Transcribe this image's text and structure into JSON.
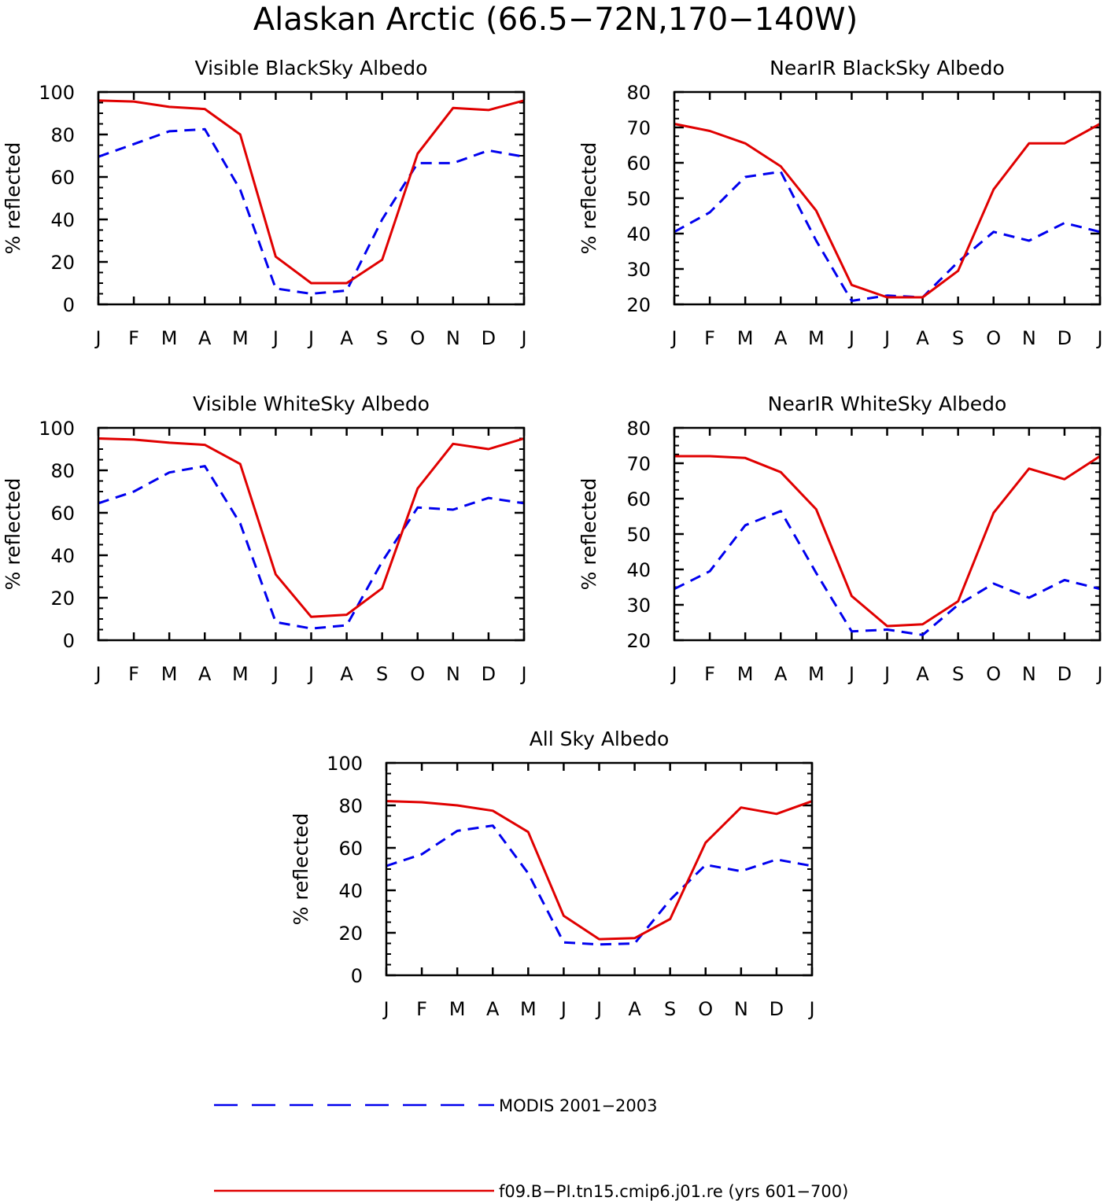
{
  "figure": {
    "title": "Alaskan Arctic (66.5−72N,170−140W)",
    "legend": [
      {
        "name": "MODIS 2001−2003",
        "color": "#0000ee",
        "style": "dashed"
      },
      {
        "name": "f09.B−PI.tn15.cmip6.j01.re (yrs 601−700)",
        "color": "#e00000",
        "style": "solid"
      }
    ]
  },
  "chart_data": [
    {
      "type": "line",
      "title": "Visible BlackSky Albedo",
      "xlabel": "",
      "ylabel": "% reflected",
      "categories": [
        "J",
        "F",
        "M",
        "A",
        "M",
        "J",
        "J",
        "A",
        "S",
        "O",
        "N",
        "D",
        "J"
      ],
      "ylim": [
        0,
        100
      ],
      "yticks": [
        0,
        20,
        40,
        60,
        80,
        100
      ],
      "series": [
        {
          "name": "MODIS 2001−2003",
          "color": "#0000ee",
          "style": "dashed",
          "values": [
            69.5,
            75.5,
            81.5,
            82.5,
            54,
            7.5,
            5,
            6.5,
            40,
            66.5,
            66.5,
            72.5,
            69.5
          ]
        },
        {
          "name": "f09.B−PI.tn15.cmip6.j01.re (yrs 601−700)",
          "color": "#e00000",
          "style": "solid",
          "values": [
            96,
            95.5,
            93,
            92,
            80,
            22.5,
            10,
            10,
            21,
            71,
            92.5,
            91.5,
            96
          ]
        }
      ]
    },
    {
      "type": "line",
      "title": "NearIR BlackSky Albedo",
      "xlabel": "",
      "ylabel": "% reflected",
      "categories": [
        "J",
        "F",
        "M",
        "A",
        "M",
        "J",
        "J",
        "A",
        "S",
        "O",
        "N",
        "D",
        "J"
      ],
      "ylim": [
        20,
        80
      ],
      "yticks": [
        20,
        30,
        40,
        50,
        60,
        70,
        80
      ],
      "series": [
        {
          "name": "MODIS 2001−2003",
          "color": "#0000ee",
          "style": "dashed",
          "values": [
            40.5,
            46,
            56,
            57.5,
            38,
            21,
            22.5,
            22,
            32,
            40.5,
            38,
            43,
            40.5
          ]
        },
        {
          "name": "f09.B−PI.tn15.cmip6.j01.re (yrs 601−700)",
          "color": "#e00000",
          "style": "solid",
          "values": [
            71,
            69,
            65.5,
            59,
            46.5,
            25.5,
            22,
            22,
            29.5,
            52.5,
            65.5,
            65.5,
            71
          ]
        }
      ]
    },
    {
      "type": "line",
      "title": "Visible WhiteSky Albedo",
      "xlabel": "",
      "ylabel": "% reflected",
      "categories": [
        "J",
        "F",
        "M",
        "A",
        "M",
        "J",
        "J",
        "A",
        "S",
        "O",
        "N",
        "D",
        "J"
      ],
      "ylim": [
        0,
        100
      ],
      "yticks": [
        0,
        20,
        40,
        60,
        80,
        100
      ],
      "series": [
        {
          "name": "MODIS 2001−2003",
          "color": "#0000ee",
          "style": "dashed",
          "values": [
            64.5,
            70,
            79,
            82,
            55,
            8.5,
            5.5,
            7,
            37,
            62.5,
            61.5,
            67,
            64.5
          ]
        },
        {
          "name": "f09.B−PI.tn15.cmip6.j01.re (yrs 601−700)",
          "color": "#e00000",
          "style": "solid",
          "values": [
            95,
            94.5,
            93,
            92,
            83,
            31,
            11,
            12,
            24.5,
            71.5,
            92.5,
            90,
            95
          ]
        }
      ]
    },
    {
      "type": "line",
      "title": "NearIR WhiteSky Albedo",
      "xlabel": "",
      "ylabel": "% reflected",
      "categories": [
        "J",
        "F",
        "M",
        "A",
        "M",
        "J",
        "J",
        "A",
        "S",
        "O",
        "N",
        "D",
        "J"
      ],
      "ylim": [
        20,
        80
      ],
      "yticks": [
        20,
        30,
        40,
        50,
        60,
        70,
        80
      ],
      "series": [
        {
          "name": "MODIS 2001−2003",
          "color": "#0000ee",
          "style": "dashed",
          "values": [
            34.5,
            39.5,
            52.5,
            56.5,
            39,
            22.5,
            23,
            21.5,
            30,
            36,
            32,
            37,
            34.5
          ]
        },
        {
          "name": "f09.B−PI.tn15.cmip6.j01.re (yrs 601−700)",
          "color": "#e00000",
          "style": "solid",
          "values": [
            72,
            72,
            71.5,
            67.5,
            57,
            32.5,
            24,
            24.5,
            31,
            56,
            68.5,
            65.5,
            72
          ]
        }
      ]
    },
    {
      "type": "line",
      "title": "All Sky Albedo",
      "xlabel": "",
      "ylabel": "% reflected",
      "categories": [
        "J",
        "F",
        "M",
        "A",
        "M",
        "J",
        "J",
        "A",
        "S",
        "O",
        "N",
        "D",
        "J"
      ],
      "ylim": [
        0,
        100
      ],
      "yticks": [
        0,
        20,
        40,
        60,
        80,
        100
      ],
      "series": [
        {
          "name": "MODIS 2001−2003",
          "color": "#0000ee",
          "style": "dashed",
          "values": [
            51.5,
            57,
            68,
            70.5,
            48,
            15.5,
            14.5,
            15,
            35.5,
            52,
            49,
            54.5,
            51.5
          ]
        },
        {
          "name": "f09.B−PI.tn15.cmip6.j01.re (yrs 601−700)",
          "color": "#e00000",
          "style": "solid",
          "values": [
            82,
            81.5,
            80,
            77.5,
            67.5,
            28,
            17,
            17.5,
            26.5,
            62.5,
            79,
            76,
            82
          ]
        }
      ]
    }
  ]
}
